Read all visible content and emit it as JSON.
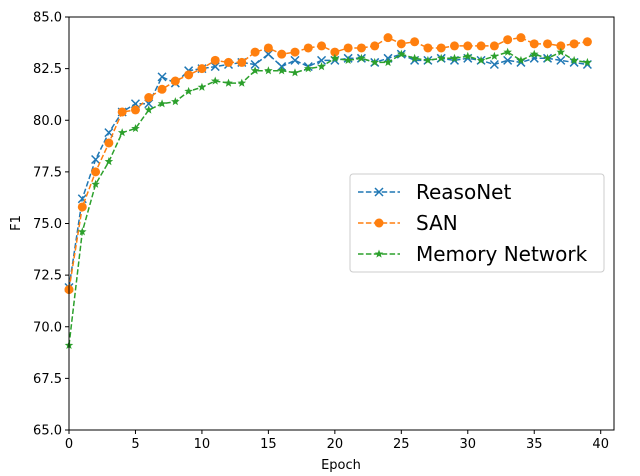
{
  "chart_data": {
    "type": "line",
    "title": "",
    "xlabel": "Epoch",
    "ylabel": "F1",
    "xlim": [
      0,
      41
    ],
    "ylim": [
      65.0,
      85.0
    ],
    "xticks": [
      0,
      5,
      10,
      15,
      20,
      25,
      30,
      35,
      40
    ],
    "xtick_labels": [
      "0",
      "5",
      "10",
      "15",
      "20",
      "25",
      "30",
      "35",
      "40"
    ],
    "yticks": [
      65.0,
      67.5,
      70.0,
      72.5,
      75.0,
      77.5,
      80.0,
      82.5,
      85.0
    ],
    "ytick_labels": [
      "65.0",
      "67.5",
      "70.0",
      "72.5",
      "75.0",
      "77.5",
      "80.0",
      "82.5",
      "85.0"
    ],
    "grid": false,
    "legend_position": "center-right",
    "x": [
      0,
      1,
      2,
      3,
      4,
      5,
      6,
      7,
      8,
      9,
      10,
      11,
      12,
      13,
      14,
      15,
      16,
      17,
      18,
      19,
      20,
      21,
      22,
      23,
      24,
      25,
      26,
      27,
      28,
      29,
      30,
      31,
      32,
      33,
      34,
      35,
      36,
      37,
      38,
      39
    ],
    "series": [
      {
        "name": "ReasoNet",
        "color": "#1f77b4",
        "marker": "x",
        "linestyle": "dashed",
        "values": [
          71.9,
          76.2,
          78.1,
          79.4,
          80.4,
          80.8,
          80.8,
          82.1,
          81.8,
          82.4,
          82.5,
          82.6,
          82.7,
          82.8,
          82.7,
          83.2,
          82.6,
          82.9,
          82.6,
          82.9,
          82.9,
          83.0,
          83.0,
          82.8,
          83.0,
          83.2,
          82.9,
          82.9,
          83.0,
          82.9,
          83.0,
          82.9,
          82.7,
          82.9,
          82.8,
          83.0,
          83.0,
          82.9,
          82.8,
          82.7
        ]
      },
      {
        "name": "SAN",
        "color": "#ff7f0e",
        "marker": "circle",
        "linestyle": "dashed",
        "values": [
          71.8,
          75.8,
          77.5,
          78.9,
          80.4,
          80.5,
          81.1,
          81.5,
          81.9,
          82.2,
          82.5,
          82.9,
          82.8,
          82.8,
          83.3,
          83.5,
          83.2,
          83.3,
          83.5,
          83.6,
          83.3,
          83.5,
          83.5,
          83.6,
          84.0,
          83.7,
          83.8,
          83.5,
          83.5,
          83.6,
          83.6,
          83.6,
          83.6,
          83.9,
          84.0,
          83.7,
          83.7,
          83.6,
          83.7,
          83.8
        ]
      },
      {
        "name": "Memory Network",
        "color": "#2ca02c",
        "marker": "star",
        "linestyle": "dashed",
        "values": [
          69.1,
          74.6,
          76.9,
          78.0,
          79.4,
          79.6,
          80.5,
          80.8,
          80.9,
          81.4,
          81.6,
          81.9,
          81.8,
          81.8,
          82.4,
          82.4,
          82.4,
          82.3,
          82.5,
          82.6,
          83.0,
          82.9,
          83.0,
          82.8,
          82.8,
          83.2,
          83.0,
          82.9,
          83.0,
          83.0,
          83.1,
          82.9,
          83.1,
          83.3,
          82.9,
          83.2,
          83.0,
          83.3,
          82.9,
          82.8
        ]
      }
    ]
  }
}
